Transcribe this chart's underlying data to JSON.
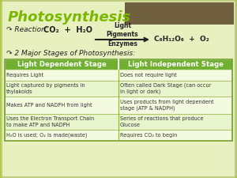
{
  "title": "Photosynthesis",
  "title_color": "#7ab800",
  "slide_bg": "#a8c840",
  "panel_bg": "#e8f0c0",
  "panel_border": "#b8cc60",
  "top_dark_rect_color": "#706040",
  "reaction_label": "↷ Reaction:",
  "reaction_formula": "CO₂  +  H₂O",
  "above_arrow": "Light\nPigments",
  "below_arrow": "Enzymes",
  "reaction_products": "C₆H₁₂O₆  +  O₂",
  "stages_label": "↷ 2 Major Stages of Photosynthesis:",
  "header_bg": "#70b030",
  "header_text_color": "#ffffff",
  "row_bg_light": "#e8f4cc",
  "row_bg_white": "#f4fae0",
  "col1_header": "Light Dependent Stage",
  "col2_header": "Light Independent Stage",
  "rows": [
    [
      "Requires Light",
      "Does not require light"
    ],
    [
      "Light captured by pigments in\nthylakoids",
      "Often called Dark Stage (can occur\nin light or dark)"
    ],
    [
      "Makes ATP and NADPH from light",
      "Uses products from light dependent\nstage (ATP & NADPH)"
    ],
    [
      "Uses the Electron Transport Chain\nto make ATP and NADPH",
      "Series of reactions that produce\nGlucose"
    ],
    [
      "H₂O is used; O₂ is made(waste)",
      "Requires CO₂ to begin"
    ]
  ],
  "text_color": "#333333",
  "arrow_color": "#222222"
}
